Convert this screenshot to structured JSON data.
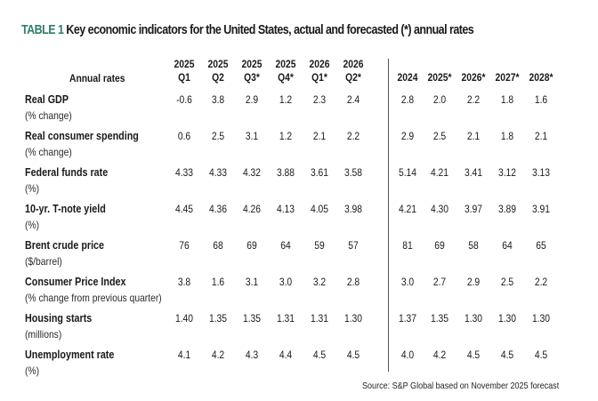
{
  "title": {
    "tag": "TABLE 1",
    "text": "Key economic indicators for the United States, actual and forecasted (*) annual rates"
  },
  "table": {
    "row_header_label": "Annual rates",
    "quarter_columns": [
      {
        "year": "2025",
        "period": "Q1"
      },
      {
        "year": "2025",
        "period": "Q2"
      },
      {
        "year": "2025",
        "period": "Q3*"
      },
      {
        "year": "2025",
        "period": "Q4*"
      },
      {
        "year": "2026",
        "period": "Q1*"
      },
      {
        "year": "2026",
        "period": "Q2*"
      }
    ],
    "annual_columns": [
      "2024",
      "2025*",
      "2026*",
      "2027*",
      "2028*"
    ],
    "rows": [
      {
        "label": "Real GDP",
        "unit": "(% change)",
        "quarterly": [
          "-0.6",
          "3.8",
          "2.9",
          "1.2",
          "2.3",
          "2.4"
        ],
        "annual": [
          "2.8",
          "2.0",
          "2.2",
          "1.8",
          "1.6"
        ]
      },
      {
        "label": "Real consumer spending",
        "unit": "(% change)",
        "quarterly": [
          "0.6",
          "2.5",
          "3.1",
          "1.2",
          "2.1",
          "2.2"
        ],
        "annual": [
          "2.9",
          "2.5",
          "2.1",
          "1.8",
          "2.1"
        ]
      },
      {
        "label": "Federal funds rate",
        "unit": "(%)",
        "quarterly": [
          "4.33",
          "4.33",
          "4.32",
          "3.88",
          "3.61",
          "3.58"
        ],
        "annual": [
          "5.14",
          "4.21",
          "3.41",
          "3.12",
          "3.13"
        ]
      },
      {
        "label": "10-yr. T-note yield",
        "unit": "(%)",
        "quarterly": [
          "4.45",
          "4.36",
          "4.26",
          "4.13",
          "4.05",
          "3.98"
        ],
        "annual": [
          "4.21",
          "4.30",
          "3.97",
          "3.89",
          "3.91"
        ]
      },
      {
        "label": "Brent crude price",
        "unit": "($/barrel)",
        "quarterly": [
          "76",
          "68",
          "69",
          "64",
          "59",
          "57"
        ],
        "annual": [
          "81",
          "69",
          "58",
          "64",
          "65"
        ]
      },
      {
        "label": "Consumer Price Index",
        "unit": "(% change from previous quarter)",
        "quarterly": [
          "3.8",
          "1.6",
          "3.1",
          "3.0",
          "3.2",
          "2.8"
        ],
        "annual": [
          "3.0",
          "2.7",
          "2.9",
          "2.5",
          "2.2"
        ]
      },
      {
        "label": "Housing starts",
        "unit": "(millions)",
        "quarterly": [
          "1.40",
          "1.35",
          "1.35",
          "1.31",
          "1.31",
          "1.30"
        ],
        "annual": [
          "1.37",
          "1.35",
          "1.30",
          "1.30",
          "1.30"
        ]
      },
      {
        "label": "Unemployment rate",
        "unit": "(%)",
        "quarterly": [
          "4.1",
          "4.2",
          "4.3",
          "4.4",
          "4.5",
          "4.5"
        ],
        "annual": [
          "4.0",
          "4.2",
          "4.5",
          "4.5",
          "4.5"
        ]
      }
    ]
  },
  "source": "Source: S&P Global based on November 2025 forecast"
}
